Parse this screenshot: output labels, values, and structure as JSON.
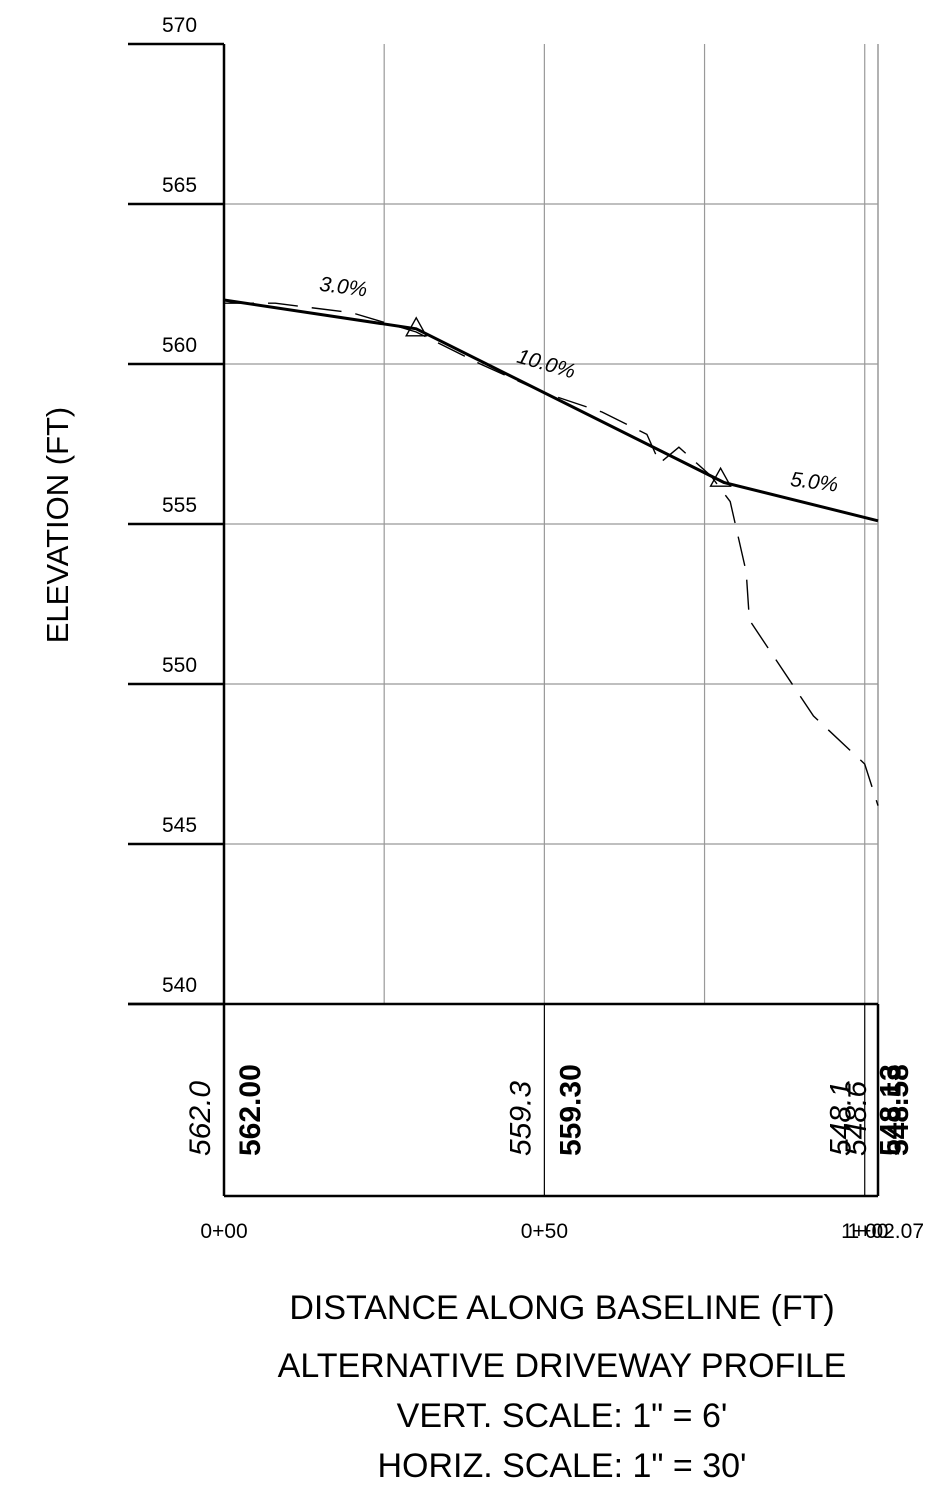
{
  "chart_data": {
    "type": "line",
    "ylabel": "ELEVATION (FT)",
    "xlabel": "DISTANCE ALONG BASELINE (FT)",
    "title": "ALTERNATIVE DRIVEWAY PROFILE",
    "subtitle_lines": [
      "VERT. SCALE: 1\" = 6'",
      "HORIZ. SCALE: 1\" = 30'"
    ],
    "ylim": [
      540,
      570
    ],
    "xlim": [
      0,
      102.07
    ],
    "y_ticks": [
      "540",
      "545",
      "550",
      "555",
      "560",
      "565",
      "570"
    ],
    "x_ticks": [
      {
        "x": 0,
        "label": "0+00"
      },
      {
        "x": 50,
        "label": "0+50"
      },
      {
        "x": 100,
        "label": "1+00"
      },
      {
        "x": 102.07,
        "label": "1+02.07"
      }
    ],
    "grid": true,
    "series": [
      {
        "style": "dashed",
        "points": [
          [
            0,
            561.9
          ],
          [
            8,
            561.9
          ],
          [
            20,
            561.6
          ],
          [
            30,
            561.0
          ],
          [
            40,
            560.0
          ],
          [
            50,
            559.1
          ],
          [
            59,
            558.5
          ],
          [
            66,
            557.8
          ],
          [
            68,
            556.9
          ],
          [
            71,
            557.4
          ],
          [
            76,
            556.5
          ],
          [
            79,
            555.7
          ],
          [
            81.5,
            553.5
          ],
          [
            82,
            552.0
          ],
          [
            92,
            549.0
          ],
          [
            100,
            547.5
          ],
          [
            102.07,
            546.2
          ]
        ]
      },
      {
        "style": "solid",
        "points": [
          [
            0,
            562.0
          ],
          [
            30,
            561.1
          ],
          [
            78,
            556.3
          ],
          [
            102.07,
            555.1
          ]
        ]
      }
    ],
    "pvi_markers": [
      [
        30,
        561.1
      ],
      [
        77.5,
        556.4
      ]
    ],
    "grade_labels": [
      {
        "text": "3.0%",
        "x": 18.5,
        "y": 562.2,
        "angle": 7
      },
      {
        "text": "10.0%",
        "x": 50,
        "y": 559.8,
        "angle": 16
      },
      {
        "text": "5.0%",
        "x": 92,
        "y": 556.1,
        "angle": 7
      }
    ],
    "elevation_table": {
      "columns": [
        {
          "x": 0,
          "existing": "562.0",
          "proposed": "562.00"
        },
        {
          "x": 50,
          "existing": "559.3",
          "proposed": "559.30"
        },
        {
          "x": 100,
          "existing": "548.1",
          "proposed": "548.13"
        },
        {
          "x": 102.07,
          "existing": "548.6",
          "proposed": "548.58"
        }
      ]
    }
  }
}
